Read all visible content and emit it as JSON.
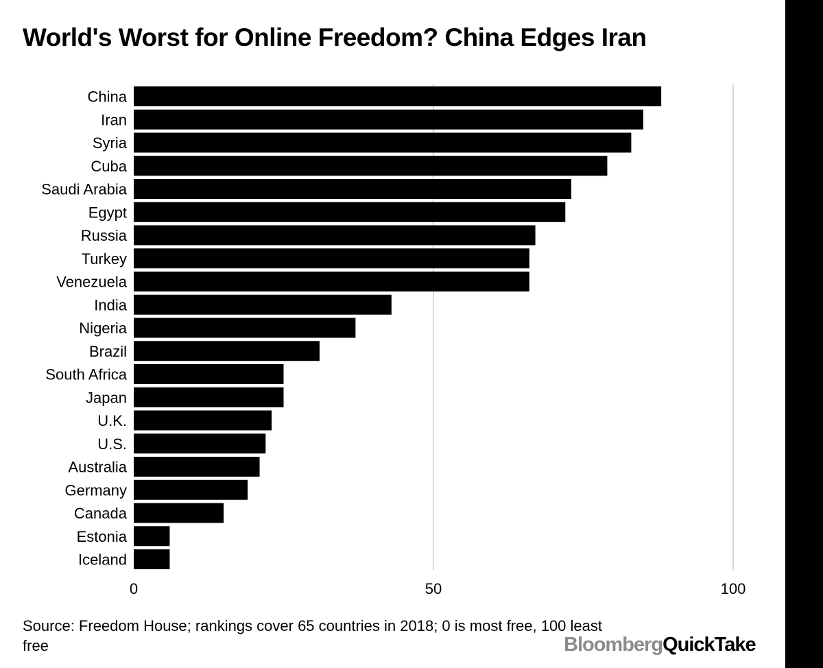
{
  "chart_data": {
    "type": "bar",
    "orientation": "horizontal",
    "title": "World's Worst for Online Freedom? China Edges Iran",
    "categories": [
      "China",
      "Iran",
      "Syria",
      "Cuba",
      "Saudi Arabia",
      "Egypt",
      "Russia",
      "Turkey",
      "Venezuela",
      "India",
      "Nigeria",
      "Brazil",
      "South Africa",
      "Japan",
      "U.K.",
      "U.S.",
      "Australia",
      "Germany",
      "Canada",
      "Estonia",
      "Iceland"
    ],
    "values": [
      88,
      85,
      83,
      79,
      73,
      72,
      67,
      66,
      66,
      43,
      37,
      31,
      25,
      25,
      23,
      22,
      21,
      19,
      15,
      6,
      6
    ],
    "xlim": [
      0,
      100
    ],
    "xticks": [
      "0",
      "50",
      "100"
    ],
    "xtick_values": [
      0,
      50,
      100
    ],
    "grid": true,
    "bar_color": "#000000",
    "gridline_color": "#d9d9d9"
  },
  "footer": {
    "source": "Source: Freedom House; rankings cover 65 countries in 2018; 0 is most free, 100 least free",
    "logo_part1": "Bloomberg",
    "logo_part2": "QuickTake"
  }
}
